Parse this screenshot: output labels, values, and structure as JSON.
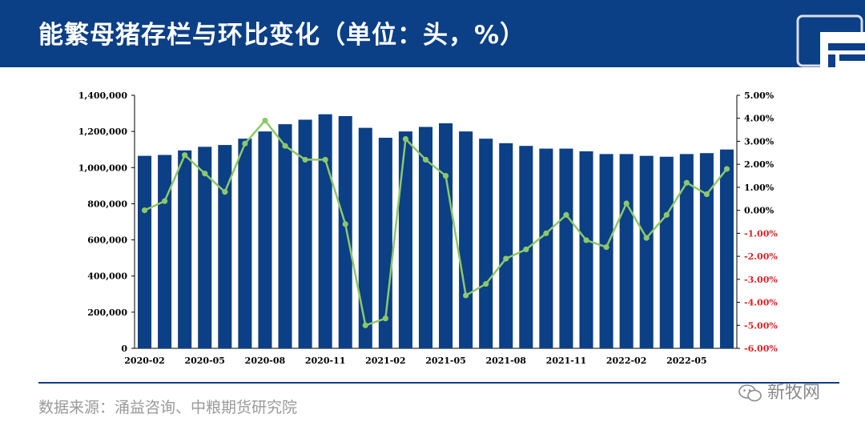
{
  "header": {
    "title": "能繁母猪存栏与环比变化（单位：头，%）"
  },
  "footer": {
    "source": "数据来源：涌益咨询、中粮期货研究院",
    "watermark": "新牧网"
  },
  "colors": {
    "header_bg": "#0b3f86",
    "bar": "#0b3f86",
    "line": "#8cc86a",
    "negative_tick": "#e02020"
  },
  "chart_data": {
    "type": "bar",
    "categories": [
      "2020-02",
      "2020-03",
      "2020-04",
      "2020-05",
      "2020-06",
      "2020-07",
      "2020-08",
      "2020-09",
      "2020-10",
      "2020-11",
      "2020-12",
      "2021-01",
      "2021-02",
      "2021-03",
      "2021-04",
      "2021-05",
      "2021-06",
      "2021-07",
      "2021-08",
      "2021-09",
      "2021-10",
      "2021-11",
      "2021-12",
      "2022-01",
      "2022-02",
      "2022-03",
      "2022-04",
      "2022-05",
      "2022-06",
      "2022-07"
    ],
    "x_tick_labels": [
      "2020-02",
      "",
      "",
      "2020-05",
      "",
      "",
      "2020-08",
      "",
      "",
      "2020-11",
      "",
      "",
      "2021-02",
      "",
      "",
      "2021-05",
      "",
      "",
      "2021-08",
      "",
      "",
      "2021-11",
      "",
      "",
      "2022-02",
      "",
      "",
      "2022-05",
      "",
      ""
    ],
    "series": [
      {
        "type": "bar",
        "axis": "left",
        "values": [
          1065000,
          1070000,
          1095000,
          1115000,
          1125000,
          1160000,
          1200000,
          1240000,
          1265000,
          1295000,
          1285000,
          1220000,
          1165000,
          1200000,
          1225000,
          1245000,
          1200000,
          1160000,
          1135000,
          1120000,
          1105000,
          1105000,
          1090000,
          1075000,
          1075000,
          1065000,
          1060000,
          1075000,
          1080000,
          1100000
        ]
      },
      {
        "type": "line",
        "axis": "right",
        "values": [
          0.0,
          0.4,
          2.4,
          1.6,
          0.8,
          2.9,
          3.9,
          2.8,
          2.2,
          2.2,
          -0.6,
          -5.0,
          -4.7,
          3.1,
          2.2,
          1.5,
          -3.7,
          -3.2,
          -2.1,
          -1.7,
          -1.0,
          -0.2,
          -1.3,
          -1.6,
          0.3,
          -1.2,
          -0.2,
          1.2,
          0.7,
          1.8
        ]
      }
    ],
    "ylim": [
      0,
      1400000
    ],
    "y_ticks": [
      "0",
      "200,000",
      "400,000",
      "600,000",
      "800,000",
      "1,000,000",
      "1,200,000",
      "1,400,000"
    ],
    "y2lim": [
      -6,
      5
    ],
    "y2_ticks": [
      "-6.00%",
      "-5.00%",
      "-4.00%",
      "-3.00%",
      "-2.00%",
      "-1.00%",
      "0.00%",
      "1.00%",
      "2.00%",
      "3.00%",
      "4.00%",
      "5.00%"
    ],
    "grid": false
  }
}
